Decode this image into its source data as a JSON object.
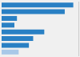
{
  "chart_data": {
    "type": "bar",
    "orientation": "horizontal",
    "categories": [
      null,
      null,
      null,
      null,
      null,
      null,
      null,
      null
    ],
    "values": [
      84,
      74,
      18,
      15,
      50,
      37,
      32,
      20
    ],
    "colors": [
      "#2980c4",
      "#2980c4",
      "#2980c4",
      "#2980c4",
      "#2980c4",
      "#2980c4",
      "#2980c4",
      "#a8c8e8"
    ],
    "xlim": [
      0,
      90
    ],
    "tick_labels": false,
    "grid": false
  }
}
